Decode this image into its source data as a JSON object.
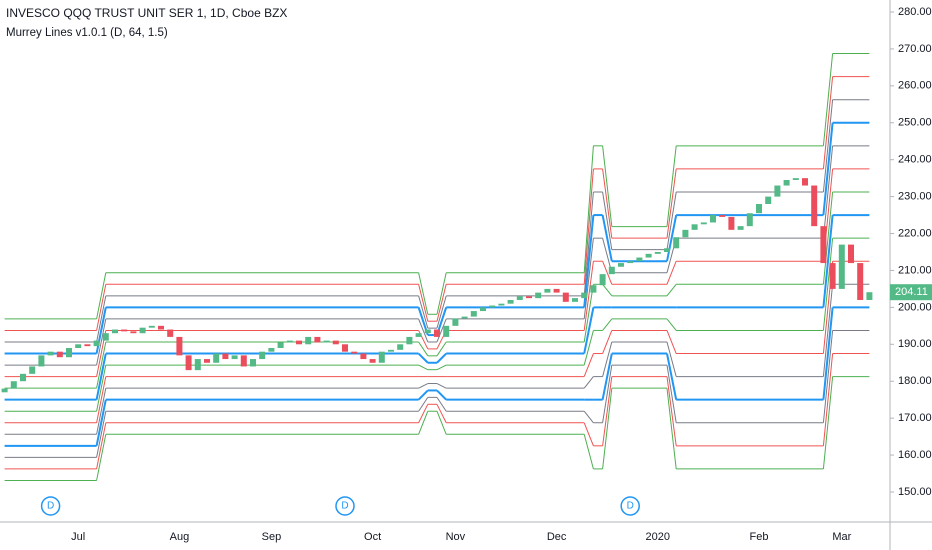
{
  "chart_data": {
    "type": "candlestick",
    "title": "INVESCO QQQ TRUST UNIT SER 1, 1D, Cboe BZX",
    "subtitle": "Murrey Lines v1.0.1 (D, 64, 1.5)",
    "categories": [
      null,
      null,
      null,
      null,
      null,
      null,
      null,
      null,
      "Jul",
      null,
      null,
      null,
      null,
      null,
      null,
      null,
      null,
      null,
      null,
      "Aug",
      null,
      null,
      null,
      null,
      null,
      null,
      null,
      null,
      null,
      "Sep",
      null,
      null,
      null,
      null,
      null,
      null,
      null,
      null,
      null,
      null,
      "Oct",
      null,
      null,
      null,
      null,
      null,
      null,
      null,
      null,
      "Nov",
      null,
      null,
      null,
      null,
      null,
      null,
      null,
      null,
      null,
      null,
      "Dec",
      null,
      null,
      null,
      null,
      null,
      null,
      null,
      null,
      null,
      null,
      "2020",
      null,
      null,
      null,
      null,
      null,
      null,
      null,
      null,
      null,
      null,
      "Feb",
      null,
      null,
      null,
      null,
      null,
      null,
      null,
      null,
      "Mar",
      null,
      null,
      null
    ],
    "candles": {
      "up_color": "#53b987",
      "down_color": "#eb4d5c",
      "open": [
        177,
        178,
        180,
        182,
        184,
        187,
        188,
        186.5,
        189,
        190,
        189.5,
        191,
        193,
        194,
        193.5,
        193,
        194.5,
        195,
        194,
        192,
        187,
        183,
        186,
        185,
        187.5,
        186,
        187,
        184,
        186,
        188,
        189,
        190.5,
        191,
        190,
        192,
        190.5,
        191,
        190,
        188,
        187.5,
        186,
        185,
        188,
        188.5,
        190,
        192,
        193,
        194,
        192,
        195,
        197,
        197.5,
        199,
        200,
        200.5,
        201,
        202,
        203,
        202.5,
        204,
        205,
        204,
        201.5,
        202.5,
        204,
        206,
        209,
        211,
        212,
        212.5,
        213.5,
        214.5,
        215,
        216,
        219,
        221,
        222.5,
        223,
        225,
        224.5,
        221,
        222,
        225.5,
        228,
        230,
        233,
        234.5,
        235,
        233,
        222,
        212,
        205,
        217,
        212,
        202
      ],
      "close": [
        178,
        180,
        182,
        184,
        187,
        188,
        186.5,
        189,
        190,
        189.5,
        191,
        193,
        194,
        193.5,
        193,
        194.5,
        195,
        194,
        192,
        187,
        183,
        186,
        185,
        187.5,
        186,
        187,
        184,
        186,
        188,
        189,
        190.5,
        191,
        190,
        192,
        190.5,
        191,
        190,
        188,
        187.5,
        186,
        185,
        188,
        188.5,
        190,
        192,
        193,
        194,
        192,
        195,
        197,
        197.5,
        199,
        200,
        200.5,
        201,
        202,
        203,
        202.5,
        204,
        205,
        204,
        201.5,
        202.5,
        204,
        206,
        209,
        211,
        212,
        212.5,
        213.5,
        214.5,
        215,
        216,
        219,
        221,
        222.5,
        223,
        225,
        224.5,
        221,
        222,
        225.5,
        228,
        230,
        233,
        234.5,
        235,
        233,
        222,
        212,
        205,
        217,
        212,
        202,
        204.11
      ]
    },
    "murrey": {
      "segments": [
        [
          0,
          10
        ],
        [
          11,
          45
        ],
        [
          46,
          47
        ],
        [
          48,
          63
        ],
        [
          64,
          65
        ],
        [
          66,
          72
        ],
        [
          73,
          89
        ],
        [
          90,
          94
        ]
      ],
      "lines": [
        {
          "color": "#4caf50",
          "thick": false,
          "values": [
            153.125,
            165.625,
            171.875,
            165.625,
            156.25,
            178.125,
            156.25,
            181.25
          ]
        },
        {
          "color": "#ef5350",
          "thick": false,
          "values": [
            156.25,
            168.75,
            173.75,
            168.75,
            162.5,
            181.25,
            162.5,
            187.5
          ]
        },
        {
          "color": "#787b86",
          "thick": false,
          "values": [
            159.375,
            171.875,
            175.625,
            171.875,
            168.75,
            184.375,
            168.75,
            193.75
          ]
        },
        {
          "color": "#2196f3",
          "thick": true,
          "values": [
            162.5,
            175,
            177.5,
            175,
            175,
            187.5,
            175,
            200
          ]
        },
        {
          "color": "#787b86",
          "thick": false,
          "values": [
            165.625,
            178.125,
            179.375,
            178.125,
            181.25,
            190.625,
            181.25,
            206.25
          ]
        },
        {
          "color": "#ef5350",
          "thick": false,
          "values": [
            168.75,
            181.25,
            181.25,
            181.25,
            187.5,
            193.75,
            187.5,
            212.5
          ]
        },
        {
          "color": "#4caf50",
          "thick": false,
          "values": [
            171.875,
            184.375,
            183.125,
            184.375,
            193.75,
            196.875,
            193.75,
            218.75
          ]
        },
        {
          "color": "#2196f3",
          "thick": true,
          "values": [
            175,
            187.5,
            185,
            187.5,
            200,
            200,
            200,
            225
          ]
        },
        {
          "color": "#4caf50",
          "thick": false,
          "values": [
            178.125,
            190.625,
            186.875,
            190.625,
            206.25,
            203.125,
            206.25,
            231.25
          ]
        },
        {
          "color": "#ef5350",
          "thick": false,
          "values": [
            181.25,
            193.75,
            188.75,
            193.75,
            212.5,
            206.25,
            212.5,
            237.5
          ]
        },
        {
          "color": "#787b86",
          "thick": false,
          "values": [
            184.375,
            196.875,
            190.625,
            196.875,
            218.75,
            209.375,
            218.75,
            243.75
          ]
        },
        {
          "color": "#2196f3",
          "thick": true,
          "values": [
            187.5,
            200,
            192.5,
            200,
            225,
            212.5,
            225,
            250
          ]
        },
        {
          "color": "#787b86",
          "thick": false,
          "values": [
            190.625,
            203.125,
            194.375,
            203.125,
            231.25,
            215.625,
            231.25,
            256.25
          ]
        },
        {
          "color": "#ef5350",
          "thick": false,
          "values": [
            193.75,
            206.25,
            196.25,
            206.25,
            237.5,
            218.75,
            237.5,
            262.5
          ]
        },
        {
          "color": "#4caf50",
          "thick": false,
          "values": [
            196.875,
            209.375,
            198.125,
            209.375,
            243.75,
            221.875,
            243.75,
            268.75
          ]
        }
      ]
    },
    "dividends": {
      "label": "D",
      "at": [
        5,
        37,
        68
      ]
    },
    "ylim": [
      141.87,
      283.25
    ],
    "yticks": [
      {
        "value": 150,
        "label": "150.00"
      },
      {
        "value": 160,
        "label": "160.00"
      },
      {
        "value": 170,
        "label": "170.00"
      },
      {
        "value": 180,
        "label": "180.00"
      },
      {
        "value": 190,
        "label": "190.00"
      },
      {
        "value": 200,
        "label": "200.00"
      },
      {
        "value": 210,
        "label": "210.00"
      },
      {
        "value": 220,
        "label": "220.00"
      },
      {
        "value": 230,
        "label": "230.00"
      },
      {
        "value": 240,
        "label": "240.00"
      },
      {
        "value": 250,
        "label": "250.00"
      },
      {
        "value": 260,
        "label": "260.00"
      },
      {
        "value": 270,
        "label": "270.00"
      },
      {
        "value": 280,
        "label": "280.00"
      }
    ]
  }
}
